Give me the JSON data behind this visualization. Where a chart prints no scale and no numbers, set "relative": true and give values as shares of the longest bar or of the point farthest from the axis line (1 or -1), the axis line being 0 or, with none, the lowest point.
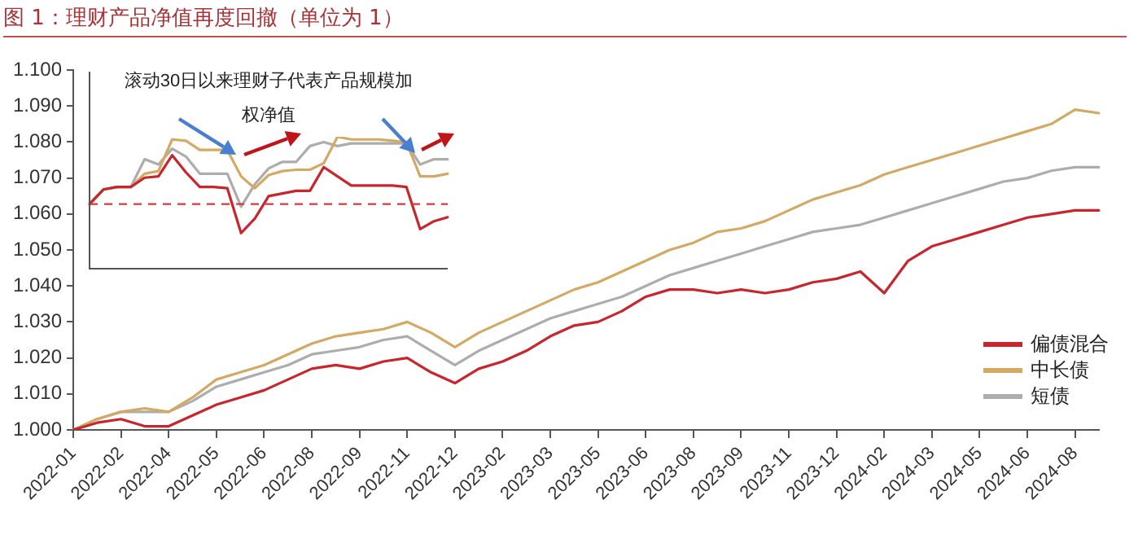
{
  "chart_data": [
    {
      "type": "line",
      "title": "图 1：理财产品净值再度回撤（单位为 1）",
      "categories": [
        "2022-01",
        null,
        "2022-02",
        null,
        "2022-04",
        null,
        "2022-05",
        null,
        "2022-06",
        null,
        "2022-08",
        null,
        "2022-09",
        null,
        "2022-11",
        null,
        "2022-12",
        null,
        "2023-02",
        null,
        "2023-03",
        null,
        "2023-05",
        null,
        "2023-06",
        null,
        "2023-08",
        null,
        "2023-09",
        null,
        "2023-11",
        null,
        "2023-12",
        null,
        "2024-02",
        null,
        "2024-03",
        null,
        "2024-05",
        null,
        "2024-06",
        null,
        "2024-08",
        null
      ],
      "series": [
        {
          "name": "偏债混合",
          "color": "#c8262c",
          "values": [
            1.0,
            1.002,
            1.003,
            1.001,
            1.001,
            1.004,
            1.007,
            1.009,
            1.011,
            1.014,
            1.017,
            1.018,
            1.017,
            1.019,
            1.02,
            1.016,
            1.013,
            1.017,
            1.019,
            1.022,
            1.026,
            1.029,
            1.03,
            1.033,
            1.037,
            1.039,
            1.039,
            1.038,
            1.039,
            1.038,
            1.039,
            1.041,
            1.042,
            1.044,
            1.038,
            1.047,
            1.051,
            1.053,
            1.055,
            1.057,
            1.059,
            1.06,
            1.061,
            1.061
          ]
        },
        {
          "name": "中长债",
          "color": "#d4a964",
          "values": [
            1.0,
            1.003,
            1.005,
            1.006,
            1.005,
            1.009,
            1.014,
            1.016,
            1.018,
            1.021,
            1.024,
            1.026,
            1.027,
            1.028,
            1.03,
            1.027,
            1.023,
            1.027,
            1.03,
            1.033,
            1.036,
            1.039,
            1.041,
            1.044,
            1.047,
            1.05,
            1.052,
            1.055,
            1.056,
            1.058,
            1.061,
            1.064,
            1.066,
            1.068,
            1.071,
            1.073,
            1.075,
            1.077,
            1.079,
            1.081,
            1.083,
            1.085,
            1.089,
            1.088
          ]
        },
        {
          "name": "短债",
          "color": "#adadad",
          "values": [
            1.0,
            1.003,
            1.005,
            1.005,
            1.005,
            1.008,
            1.012,
            1.014,
            1.016,
            1.018,
            1.021,
            1.022,
            1.023,
            1.025,
            1.026,
            1.022,
            1.018,
            1.022,
            1.025,
            1.028,
            1.031,
            1.033,
            1.035,
            1.037,
            1.04,
            1.043,
            1.045,
            1.047,
            1.049,
            1.051,
            1.053,
            1.055,
            1.056,
            1.057,
            1.059,
            1.061,
            1.063,
            1.065,
            1.067,
            1.069,
            1.07,
            1.072,
            1.073,
            1.073
          ]
        }
      ],
      "ylim": [
        1.0,
        1.1
      ],
      "yticks": [
        {
          "value": 1.0,
          "label": "1.000"
        },
        {
          "value": 1.01,
          "label": "1.010"
        },
        {
          "value": 1.02,
          "label": "1.020"
        },
        {
          "value": 1.03,
          "label": "1.030"
        },
        {
          "value": 1.04,
          "label": "1.040"
        },
        {
          "value": 1.05,
          "label": "1.050"
        },
        {
          "value": 1.06,
          "label": "1.060"
        },
        {
          "value": 1.07,
          "label": "1.070"
        },
        {
          "value": 1.08,
          "label": "1.080"
        },
        {
          "value": 1.09,
          "label": "1.090"
        },
        {
          "value": 1.1,
          "label": "1.100"
        }
      ],
      "grid": false,
      "legend": "bottom right",
      "marker": "none",
      "line_style": "solid"
    },
    {
      "type": "line",
      "title": "滚动30日以来理财子代表产品规模加权净值",
      "relative": true,
      "categories": [
        null,
        null,
        null,
        null,
        null,
        null,
        null,
        null,
        null,
        null,
        null,
        null,
        null,
        null,
        null,
        null,
        null,
        null,
        null,
        null,
        null,
        null,
        null,
        null,
        null,
        null,
        null
      ],
      "series": [
        {
          "color": "#c8262c",
          "values": [
            0.49,
            0.6,
            0.62,
            0.62,
            0.69,
            0.7,
            0.86,
            0.73,
            0.62,
            0.62,
            0.61,
            0.27,
            0.38,
            0.55,
            0.57,
            0.59,
            0.59,
            0.77,
            0.7,
            0.63,
            0.63,
            0.63,
            0.63,
            0.62,
            0.3,
            0.36,
            0.39
          ]
        },
        {
          "color": "#d4a964",
          "values": [
            0.49,
            0.6,
            0.62,
            0.62,
            0.72,
            0.74,
            0.98,
            0.97,
            0.9,
            0.9,
            0.9,
            0.7,
            0.61,
            0.71,
            0.74,
            0.75,
            0.75,
            0.8,
            1.0,
            0.98,
            0.98,
            0.98,
            0.97,
            0.96,
            0.7,
            0.7,
            0.72
          ]
        },
        {
          "color": "#adadad",
          "values": [
            0.49,
            0.6,
            0.62,
            0.62,
            0.83,
            0.79,
            0.91,
            0.85,
            0.72,
            0.72,
            0.72,
            0.47,
            0.64,
            0.76,
            0.81,
            0.81,
            0.93,
            0.96,
            0.93,
            0.95,
            0.95,
            0.95,
            0.95,
            0.95,
            0.79,
            0.83,
            0.83
          ]
        }
      ],
      "ref_lines": [
        {
          "axis": "y",
          "value": 0.49,
          "color": "#d9383e",
          "line_style": "dashed"
        }
      ],
      "legend": false,
      "marker": "none",
      "line_style": "solid"
    }
  ]
}
